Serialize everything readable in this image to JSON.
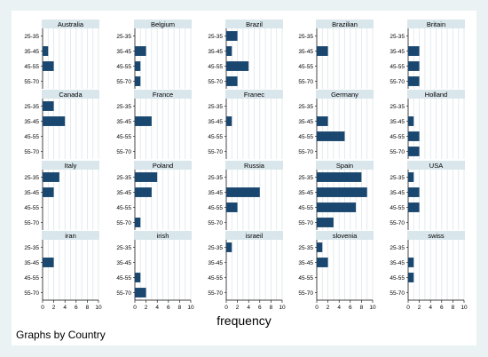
{
  "chart_data": {
    "type": "bar",
    "orientation": "horizontal",
    "layout": "small-multiples",
    "grid_columns": 5,
    "categories": [
      "25-35",
      "35-45",
      "45-55",
      "55-70"
    ],
    "xlabel": "frequency",
    "note": "Graphs by Country",
    "xlim": [
      0,
      10
    ],
    "x_ticks": [
      "0",
      "2",
      "4",
      "6",
      "8",
      "10"
    ],
    "grid": true,
    "bar_color": "#1a476f",
    "panels": [
      {
        "name": "Australia",
        "values": [
          0,
          1,
          2,
          0
        ]
      },
      {
        "name": "Belgium",
        "values": [
          0,
          2,
          1,
          1
        ]
      },
      {
        "name": "Brazil",
        "values": [
          2,
          1,
          4,
          2
        ]
      },
      {
        "name": "Brazilian",
        "values": [
          0,
          2,
          0,
          0
        ]
      },
      {
        "name": "Britain",
        "values": [
          0,
          2,
          2,
          2
        ]
      },
      {
        "name": "Canada",
        "values": [
          2,
          4,
          0,
          0
        ]
      },
      {
        "name": "France",
        "values": [
          0,
          3,
          0,
          0
        ]
      },
      {
        "name": "Franec",
        "values": [
          0,
          1,
          0,
          0
        ]
      },
      {
        "name": "Germany",
        "values": [
          0,
          2,
          5,
          0
        ]
      },
      {
        "name": "Holland",
        "values": [
          0,
          1,
          2,
          2
        ]
      },
      {
        "name": "Italy",
        "values": [
          3,
          2,
          0,
          0
        ]
      },
      {
        "name": "Poland",
        "values": [
          4,
          3,
          0,
          1
        ]
      },
      {
        "name": "Russia",
        "values": [
          0,
          6,
          2,
          0
        ]
      },
      {
        "name": "Spain",
        "values": [
          8,
          9,
          7,
          3
        ]
      },
      {
        "name": "USA",
        "values": [
          1,
          2,
          2,
          0
        ]
      },
      {
        "name": "iran",
        "values": [
          0,
          2,
          0,
          0
        ]
      },
      {
        "name": "irish",
        "values": [
          0,
          0,
          1,
          2
        ]
      },
      {
        "name": "israeil",
        "values": [
          1,
          0,
          0,
          0
        ]
      },
      {
        "name": "slovenia",
        "values": [
          1,
          2,
          0,
          0
        ]
      },
      {
        "name": "swiss",
        "values": [
          0,
          1,
          1,
          0
        ]
      }
    ]
  }
}
